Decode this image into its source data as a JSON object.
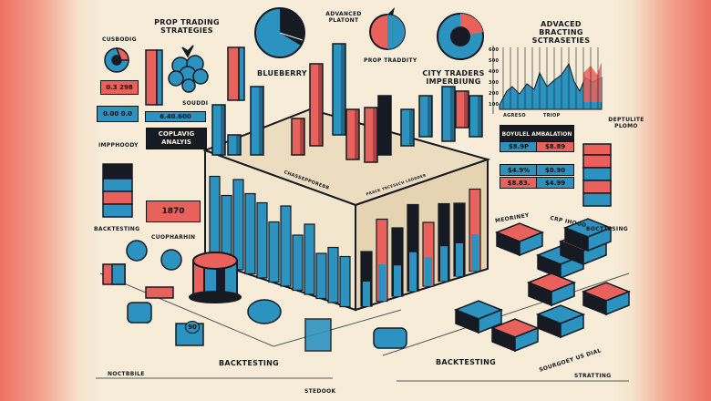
{
  "colors": {
    "background": "#f6ecd8",
    "accent_blue": "#2c93c0",
    "accent_red": "#e8615a",
    "ink": "#161a22",
    "side_band": "#ee6f63"
  },
  "titles": {
    "prop_trading": "PROP TRADING STRATEGIES",
    "advanced_platont": "ADVANCED PLATONT",
    "blueberry": "BLUEBERRY",
    "prop_traddity": "PROP TRADDITY",
    "city_traders": "CITY TRADERS IMPERBIUNG",
    "advanced_bracting": "ADVACED BRACTING SCTRASETIES"
  },
  "labels": {
    "cusbodig": "CUSBODIG",
    "souddi": "SOUDDI",
    "impphoody": "IMPPHOODY",
    "backtesting_left": "BACKTESTING",
    "cuopharhin": "CUOPHARHIN",
    "noctbbile": "NOCTBBILE",
    "stedook": "STEDOOK",
    "backtesting_mid": "BACKTESTING",
    "backtesting_right": "BACKTESTING",
    "sourgoey": "SOURGOEY US DIAL",
    "stratting": "STRATTING",
    "meoriney": "MEORINEY",
    "crp_hood": "CRP IHOOD",
    "bocttesing": "BOCTTESING",
    "deptulite": "DEPTULITE PLOMO",
    "platform_strip": "CHASSEPPOREBB",
    "platform_strip2": "PRACK TRCESSCH LEDDDER"
  },
  "panels": {
    "value_bar": "6.40.600",
    "coplavig": "COPLAVIG ANALYIS",
    "card_a": "0.3  298",
    "card_b": "0.00  0.0",
    "ticket": "1870",
    "simulation_title": "BOYULEL AMBALATION",
    "sim_values": [
      "$8.9P",
      "$8.89"
    ],
    "grid_values": [
      "$4.9%",
      "$0.90",
      "$8.83.",
      "$4.99"
    ],
    "cake_tag": "90"
  },
  "line_chart": {
    "y_ticks": [
      "600",
      "500",
      "400",
      "300",
      "200",
      "100"
    ],
    "x_labels": [
      "AGRESO",
      "TRIOP"
    ]
  }
}
